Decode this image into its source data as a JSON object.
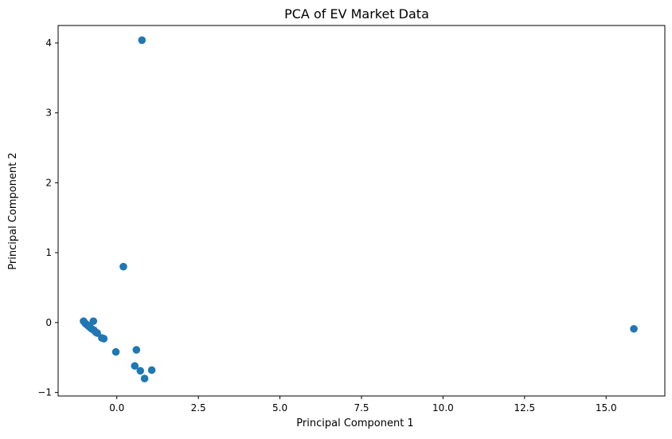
{
  "chart_data": {
    "type": "scatter",
    "title": "PCA of EV Market Data",
    "xlabel": "Principal Component 1",
    "ylabel": "Principal Component 2",
    "xlim": [
      -1.8,
      16.8
    ],
    "ylim": [
      -1.05,
      4.25
    ],
    "x_ticks": [
      0.0,
      2.5,
      5.0,
      7.5,
      10.0,
      12.5,
      15.0
    ],
    "x_tick_labels": [
      "0.0",
      "2.5",
      "5.0",
      "7.5",
      "10.0",
      "12.5",
      "15.0"
    ],
    "y_ticks": [
      -1,
      0,
      1,
      2,
      3,
      4
    ],
    "y_tick_labels": [
      "−1",
      "0",
      "1",
      "2",
      "3",
      "4"
    ],
    "grid": false,
    "legend": "none",
    "color": "#1f77b4",
    "points": [
      {
        "x": -1.02,
        "y": 0.02
      },
      {
        "x": -0.97,
        "y": -0.01
      },
      {
        "x": -0.92,
        "y": -0.03
      },
      {
        "x": -0.87,
        "y": -0.05
      },
      {
        "x": -0.82,
        "y": -0.07
      },
      {
        "x": -0.77,
        "y": -0.09
      },
      {
        "x": -0.72,
        "y": 0.02
      },
      {
        "x": -0.7,
        "y": -0.11
      },
      {
        "x": -0.64,
        "y": -0.14
      },
      {
        "x": -0.6,
        "y": -0.15
      },
      {
        "x": -0.46,
        "y": -0.22
      },
      {
        "x": -0.4,
        "y": -0.23
      },
      {
        "x": -0.03,
        "y": -0.42
      },
      {
        "x": 0.2,
        "y": 0.8
      },
      {
        "x": 0.55,
        "y": -0.62
      },
      {
        "x": 0.6,
        "y": -0.39
      },
      {
        "x": 0.72,
        "y": -0.69
      },
      {
        "x": 0.77,
        "y": 4.04
      },
      {
        "x": 0.85,
        "y": -0.8
      },
      {
        "x": 1.07,
        "y": -0.68
      },
      {
        "x": 15.85,
        "y": -0.09
      }
    ]
  }
}
